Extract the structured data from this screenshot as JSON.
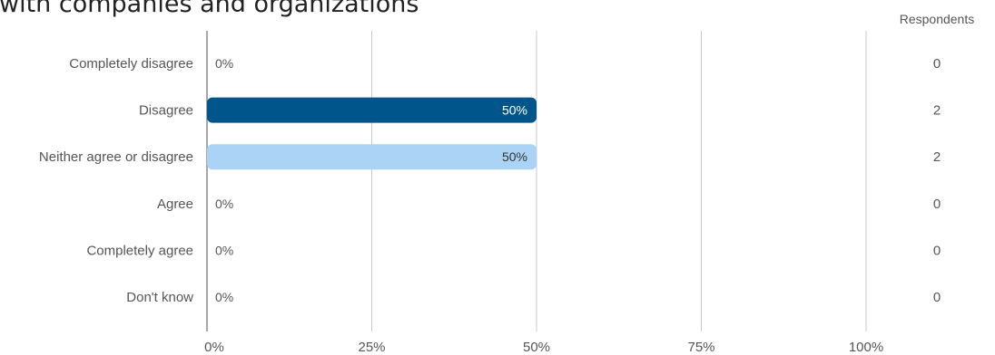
{
  "chart_data": {
    "type": "bar",
    "orientation": "horizontal",
    "title": "with companies and organizations",
    "categories": [
      "Completely disagree",
      "Disagree",
      "Neither agree or disagree",
      "Agree",
      "Completely agree",
      "Don't know"
    ],
    "values": [
      0,
      50,
      50,
      0,
      0,
      0
    ],
    "value_labels": [
      "0%",
      "50%",
      "50%",
      "0%",
      "0%",
      "0%"
    ],
    "bar_colors": [
      "#00558b",
      "#00558b",
      "#aad3f5",
      "#aad3f5",
      "#aad3f5",
      "#aad3f5"
    ],
    "xlim": [
      0,
      100
    ],
    "x_ticks": [
      0,
      25,
      50,
      75,
      100
    ],
    "x_tick_labels": [
      "0%",
      "25%",
      "50%",
      "75%",
      "100%"
    ],
    "grid": true,
    "respondents_header": "Respondents",
    "respondents": [
      "0",
      "2",
      "2",
      "0",
      "0",
      "0"
    ]
  }
}
